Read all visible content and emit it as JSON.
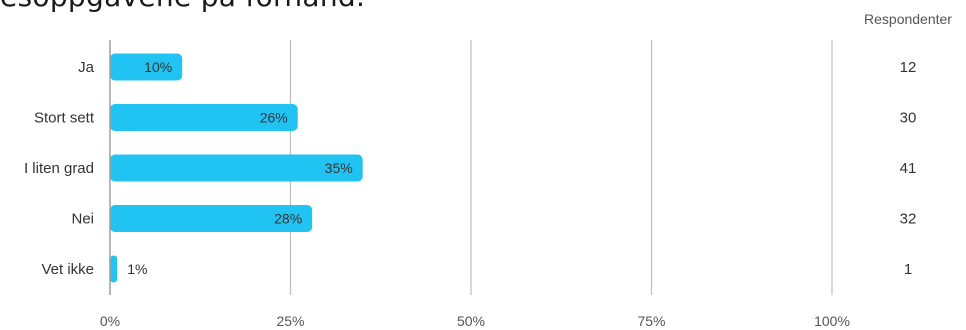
{
  "title_fragment": "esoppgavene på forhånd.",
  "chart_data": {
    "type": "bar",
    "orientation": "horizontal",
    "categories": [
      "Ja",
      "Stort sett",
      "I liten grad",
      "Nei",
      "Vet ikke"
    ],
    "values": [
      10,
      26,
      35,
      28,
      1
    ],
    "value_labels": [
      "10%",
      "26%",
      "35%",
      "28%",
      "1%"
    ],
    "respondents_header": "Respondenter",
    "respondents": [
      "12",
      "30",
      "41",
      "32",
      "1"
    ],
    "xlim": [
      0,
      100
    ],
    "x_ticks": [
      0,
      25,
      50,
      75,
      100
    ],
    "x_tick_labels": [
      "0%",
      "25%",
      "50%",
      "75%",
      "100%"
    ],
    "grid": true,
    "bar_color": "#21c3f3",
    "grid_color": "#bdbdbd",
    "axis_color": "#9e9e9e"
  }
}
